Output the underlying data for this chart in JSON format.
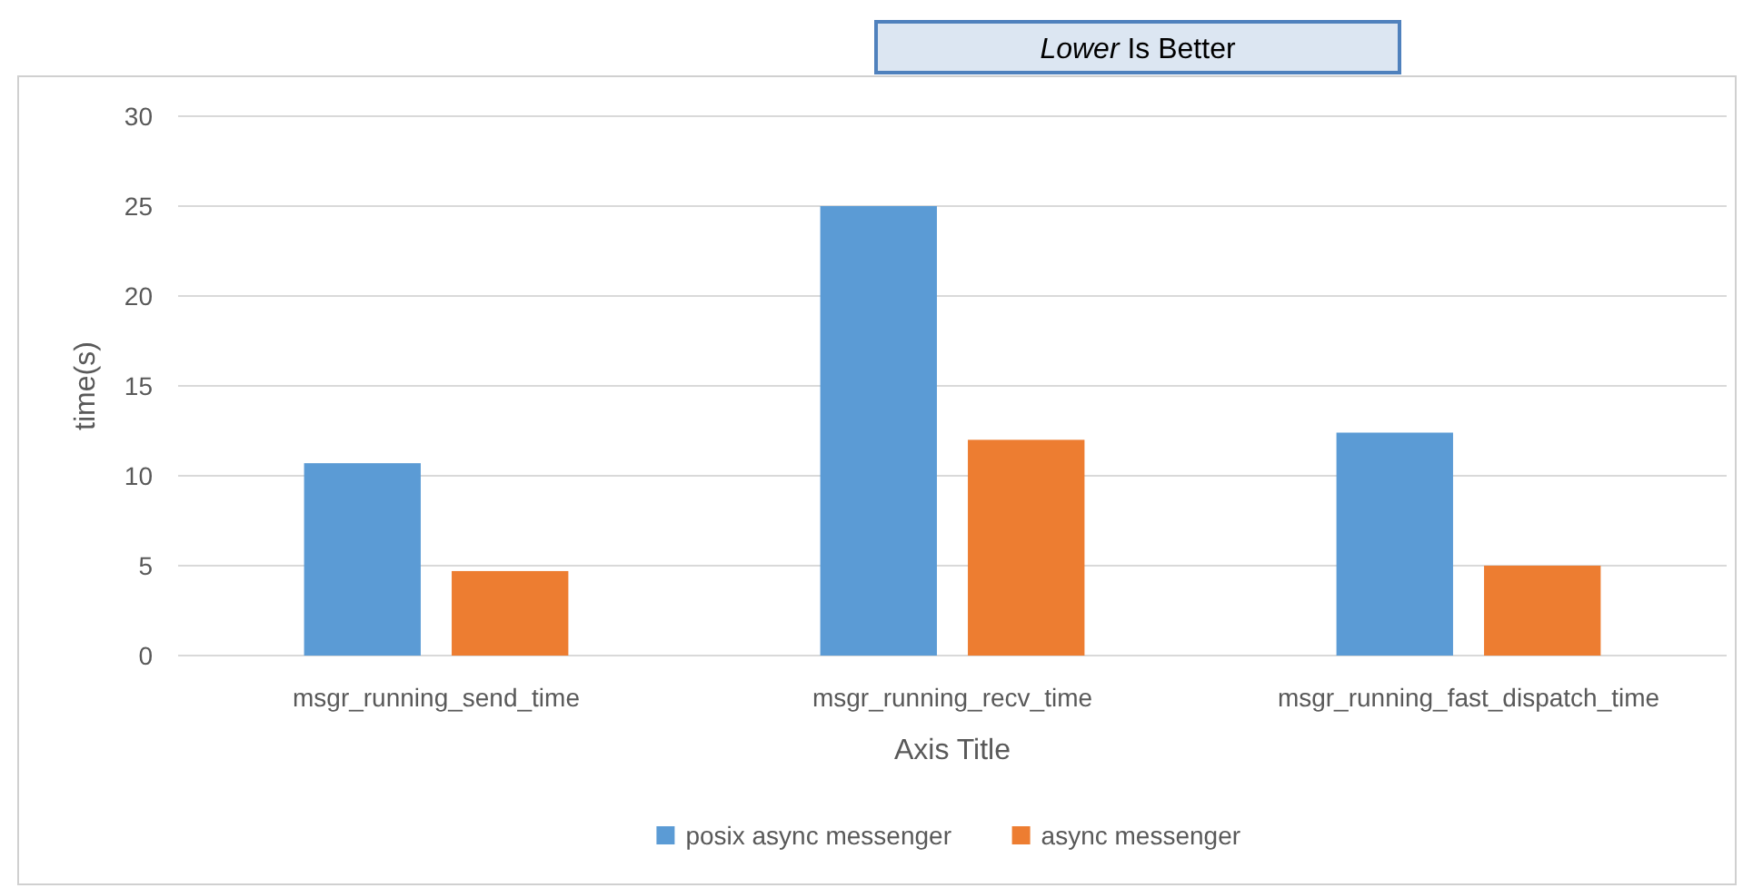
{
  "chart_data": {
    "type": "bar",
    "title": "Lower Is Better",
    "xlabel": "Axis Title",
    "ylabel": "time(s)",
    "categories": [
      "msgr_running_send_time",
      "msgr_running_recv_time",
      "msgr_running_fast_dispatch_time"
    ],
    "series": [
      {
        "name": "posix async messenger",
        "color": "#5b9bd5",
        "values": [
          10.7,
          25,
          12.4
        ]
      },
      {
        "name": "async messenger",
        "color": "#ed7d31",
        "values": [
          4.7,
          12,
          5
        ]
      }
    ],
    "ylim": [
      0,
      30
    ],
    "yticks": [
      0,
      5,
      10,
      15,
      20,
      25,
      30
    ],
    "grid": "y",
    "legend": "bottom"
  }
}
